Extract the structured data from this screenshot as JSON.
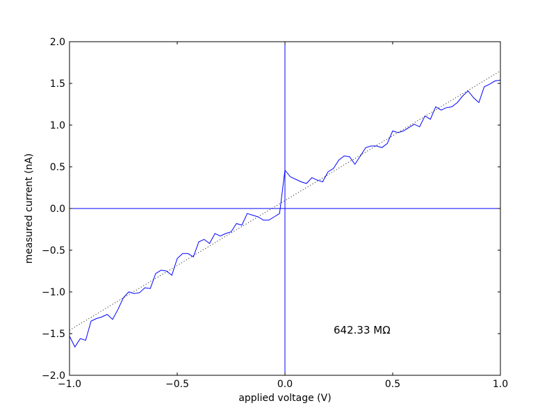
{
  "chart_data": {
    "type": "line",
    "title": "",
    "xlabel": "applied voltage (V)",
    "ylabel": "measured current (nA)",
    "xlim": [
      -1.0,
      1.0
    ],
    "ylim": [
      -2.0,
      2.0
    ],
    "xticks": [
      -1.0,
      -0.5,
      0.0,
      0.5,
      1.0
    ],
    "xtick_labels": [
      "−1.0",
      "−0.5",
      "0.0",
      "0.5",
      "1.0"
    ],
    "yticks": [
      -2.0,
      -1.5,
      -1.0,
      -0.5,
      0.0,
      0.5,
      1.0,
      1.5,
      2.0
    ],
    "ytick_labels": [
      "−2.0",
      "−1.5",
      "−1.0",
      "−0.5",
      "0.0",
      "0.5",
      "1.0",
      "1.5",
      "2.0"
    ],
    "grid": false,
    "legend": "none",
    "annotation": "642.33 MΩ",
    "reference_lines": {
      "x": 0.0,
      "y": 0.0,
      "color": "#0000ff"
    },
    "series": [
      {
        "style": "solid",
        "color": "#0000ff",
        "x": [
          -1.0,
          -0.975,
          -0.95,
          -0.925,
          -0.9,
          -0.875,
          -0.85,
          -0.825,
          -0.8,
          -0.775,
          -0.75,
          -0.725,
          -0.7,
          -0.675,
          -0.65,
          -0.625,
          -0.6,
          -0.575,
          -0.55,
          -0.525,
          -0.5,
          -0.475,
          -0.45,
          -0.425,
          -0.4,
          -0.375,
          -0.35,
          -0.325,
          -0.3,
          -0.275,
          -0.25,
          -0.225,
          -0.2,
          -0.175,
          -0.15,
          -0.125,
          -0.1,
          -0.075,
          -0.05,
          -0.025,
          0.0,
          0.025,
          0.05,
          0.075,
          0.1,
          0.125,
          0.15,
          0.175,
          0.2,
          0.225,
          0.25,
          0.275,
          0.3,
          0.325,
          0.35,
          0.375,
          0.4,
          0.425,
          0.45,
          0.475,
          0.5,
          0.525,
          0.55,
          0.575,
          0.6,
          0.625,
          0.65,
          0.675,
          0.7,
          0.725,
          0.75,
          0.775,
          0.8,
          0.825,
          0.85,
          0.875,
          0.9,
          0.925,
          0.95,
          0.975,
          1.0
        ],
        "y": [
          -1.53,
          -1.66,
          -1.56,
          -1.58,
          -1.35,
          -1.32,
          -1.3,
          -1.27,
          -1.33,
          -1.21,
          -1.07,
          -1.0,
          -1.02,
          -1.01,
          -0.95,
          -0.96,
          -0.78,
          -0.74,
          -0.75,
          -0.8,
          -0.6,
          -0.54,
          -0.54,
          -0.58,
          -0.4,
          -0.37,
          -0.42,
          -0.3,
          -0.33,
          -0.3,
          -0.28,
          -0.18,
          -0.2,
          -0.06,
          -0.08,
          -0.1,
          -0.14,
          -0.14,
          -0.1,
          -0.06,
          0.46,
          0.38,
          0.35,
          0.32,
          0.3,
          0.37,
          0.34,
          0.32,
          0.44,
          0.48,
          0.58,
          0.63,
          0.62,
          0.53,
          0.63,
          0.73,
          0.75,
          0.75,
          0.73,
          0.78,
          0.93,
          0.91,
          0.93,
          0.97,
          1.01,
          0.98,
          1.11,
          1.07,
          1.22,
          1.18,
          1.21,
          1.22,
          1.27,
          1.35,
          1.41,
          1.33,
          1.27,
          1.46,
          1.49,
          1.53,
          1.54
        ]
      },
      {
        "style": "dotted",
        "color": "#000000",
        "x": [
          -1.0,
          1.0
        ],
        "y": [
          -1.46,
          1.65
        ]
      }
    ]
  }
}
